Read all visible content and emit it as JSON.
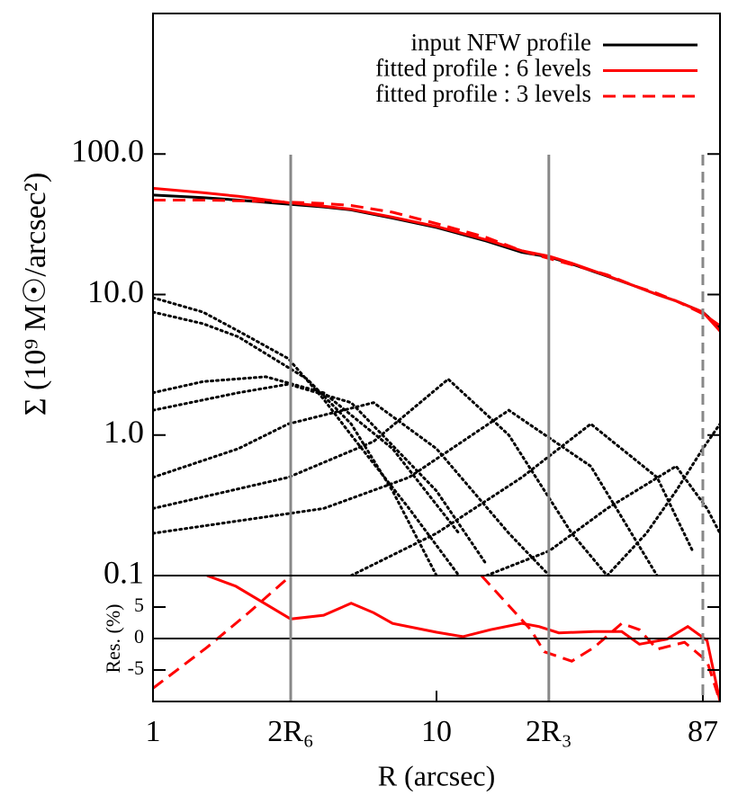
{
  "chart_data": [
    {
      "type": "line",
      "ylabel": "Σ (10⁹ M☉/arcsec²)",
      "log_x": true,
      "log_y": true,
      "xlim": [
        1,
        100
      ],
      "ylim": [
        0.1,
        1000
      ],
      "yticks": [
        0.1,
        {
          "value": 1,
          "label": "1.0"
        },
        {
          "value": 10,
          "label": "10.0"
        },
        {
          "value": 100,
          "label": "100.0"
        }
      ],
      "legend": "upper right",
      "reference_lines": [
        {
          "x": 3.06,
          "color": "#888888",
          "dashed": false
        },
        {
          "x": 24.9,
          "color": "#888888",
          "dashed": false
        },
        {
          "x": 87,
          "color": "#888888",
          "dashed": true
        }
      ],
      "series": [
        {
          "name": "input NFW profile",
          "color": "#000000",
          "style": "solid",
          "x": [
            1,
            1.5,
            2,
            3,
            4,
            5,
            7,
            10,
            15,
            20,
            25,
            30,
            40,
            50,
            60,
            70,
            87,
            100
          ],
          "values": [
            51,
            49,
            47,
            44,
            42,
            40,
            35,
            30,
            24,
            20,
            18.5,
            16.5,
            13.5,
            11.5,
            10,
            9,
            7.5,
            5.8
          ]
        },
        {
          "name": "fitted profile : 6 levels",
          "color": "#ff0000",
          "style": "solid",
          "x": [
            1,
            1.5,
            2,
            3,
            4,
            5,
            7,
            10,
            15,
            20,
            25,
            30,
            40,
            50,
            60,
            70,
            87,
            100
          ],
          "values": [
            57,
            53,
            50,
            45,
            42.5,
            40.5,
            35.5,
            30.5,
            24.5,
            20.5,
            18.7,
            16.7,
            13.6,
            11.5,
            10,
            9,
            7.5,
            5.5
          ]
        },
        {
          "name": "fitted profile : 3 levels",
          "color": "#ff0000",
          "style": "dashed",
          "x": [
            1,
            1.5,
            2,
            3,
            4,
            5,
            7,
            10,
            15,
            20,
            25,
            30,
            40,
            50,
            60,
            70,
            87,
            100
          ],
          "values": [
            47,
            47,
            46.5,
            45.5,
            44.5,
            43,
            38.5,
            32,
            25.5,
            20.5,
            18,
            16.3,
            13.8,
            11.5,
            10.2,
            9,
            7.3,
            6
          ]
        },
        {
          "color": "#000000",
          "style": "dotted",
          "x": [
            1,
            1.5,
            2,
            3,
            4,
            5,
            8,
            12
          ],
          "values": [
            9.5,
            7.5,
            5.5,
            3.5,
            1.8,
            1,
            0.3,
            0.1
          ]
        },
        {
          "color": "#000000",
          "style": "dotted",
          "x": [
            1,
            1.5,
            2,
            3.5,
            5,
            7,
            10
          ],
          "values": [
            7.5,
            6.2,
            5,
            2.5,
            1.2,
            0.4,
            0.1
          ]
        },
        {
          "color": "#000000",
          "style": "dotted",
          "x": [
            1,
            1.5,
            2.5,
            4,
            7,
            12
          ],
          "values": [
            2,
            2.4,
            2.6,
            2,
            0.8,
            0.2
          ]
        },
        {
          "color": "#000000",
          "style": "dotted",
          "x": [
            1,
            2,
            3,
            5,
            10,
            15
          ],
          "values": [
            1.5,
            2,
            2.3,
            1.7,
            0.4,
            0.12
          ]
        },
        {
          "color": "#000000",
          "style": "dotted",
          "x": [
            1,
            2,
            3,
            6,
            10,
            18,
            25
          ],
          "values": [
            0.5,
            0.8,
            1.2,
            1.7,
            0.8,
            0.2,
            0.1
          ]
        },
        {
          "color": "#000000",
          "style": "dotted",
          "x": [
            1,
            3,
            6,
            11,
            18,
            30,
            40
          ],
          "values": [
            0.3,
            0.5,
            0.9,
            2.5,
            1,
            0.2,
            0.1
          ]
        },
        {
          "color": "#000000",
          "style": "dotted",
          "x": [
            1,
            4,
            8,
            18,
            35,
            60
          ],
          "values": [
            0.2,
            0.3,
            0.5,
            1.5,
            0.6,
            0.1
          ]
        },
        {
          "color": "#000000",
          "style": "dotted",
          "x": [
            5,
            10,
            20,
            35,
            60,
            80
          ],
          "values": [
            0.1,
            0.2,
            0.5,
            1.2,
            0.5,
            0.15
          ]
        },
        {
          "color": "#000000",
          "style": "dotted",
          "x": [
            15,
            25,
            40,
            70,
            90,
            100
          ],
          "values": [
            0.1,
            0.15,
            0.3,
            0.6,
            0.3,
            0.2
          ]
        },
        {
          "color": "#000000",
          "style": "dotted",
          "x": [
            40,
            55,
            70,
            87,
            100
          ],
          "values": [
            0.1,
            0.2,
            0.4,
            0.8,
            1.2
          ]
        }
      ]
    },
    {
      "type": "line",
      "ylabel": "Res. (%)",
      "xlabel": "R (arcsec)",
      "log_x": true,
      "xlim": [
        1,
        100
      ],
      "ylim": [
        -10,
        10
      ],
      "yticks": [
        -5,
        0,
        5
      ],
      "xticks": [
        1,
        {
          "value": 3.06,
          "label": "2R₆"
        },
        10,
        {
          "value": 24.9,
          "label": "2R₃"
        },
        87
      ],
      "zero_line": true,
      "series": [
        {
          "color": "#ff0000",
          "style": "solid",
          "x": [
            1.55,
            1.96,
            3.06,
            4,
            5,
            6,
            7,
            10,
            12.4,
            15.5,
            20,
            23,
            27,
            36,
            45,
            52,
            65,
            77,
            90,
            100
          ],
          "values": [
            10,
            8.3,
            3.1,
            3.7,
            5.6,
            4.1,
            2.4,
            1,
            0.3,
            1.4,
            2.4,
            1.9,
            0.9,
            1.1,
            1.1,
            -0.9,
            -0.1,
            1.9,
            -0.3,
            -10
          ]
        },
        {
          "color": "#ff0000",
          "style": "dashed",
          "x": [
            1,
            1.55,
            2.2,
            3.06,
            8,
            14.4,
            21.5,
            24,
            30,
            36,
            45,
            52,
            60,
            75,
            90,
            100
          ],
          "values": [
            -7.9,
            -1.4,
            4.3,
            10,
            null,
            10,
            1.4,
            -2.1,
            -3.6,
            -1.4,
            2.4,
            1.4,
            -1.7,
            -0.6,
            -3.6,
            -10
          ]
        }
      ]
    }
  ]
}
